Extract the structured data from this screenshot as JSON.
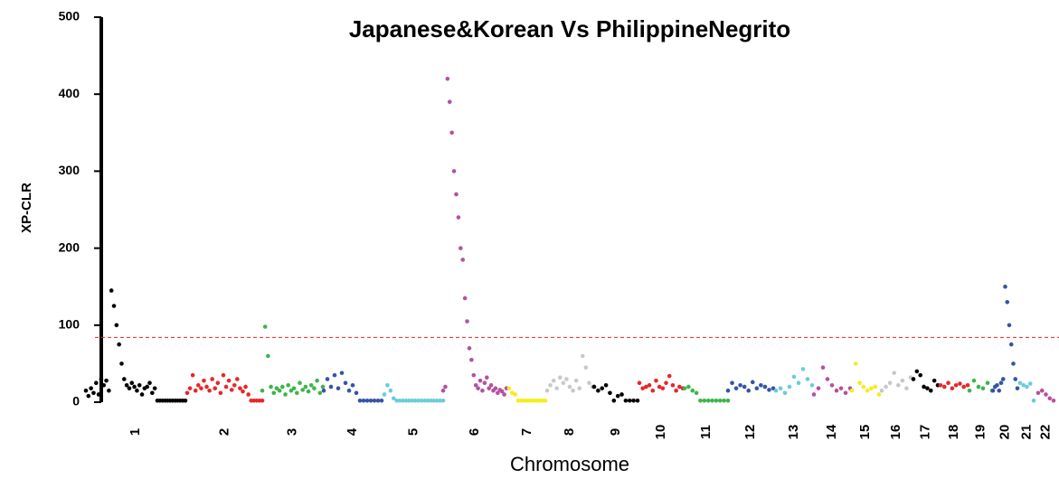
{
  "chart_data": {
    "type": "manhattan",
    "title": "Japanese&Korean Vs PhilippineNegrito",
    "xlabel": "Chromosome",
    "ylabel": "XP-CLR",
    "ylim": [
      0,
      500
    ],
    "yticks": [
      0,
      100,
      200,
      300,
      400,
      500
    ],
    "threshold": 84,
    "threshold_color": "#e8262a",
    "chromosomes": [
      {
        "label": "1",
        "color": "#000000",
        "values": [
          15,
          8,
          18,
          12,
          25,
          10,
          30,
          22,
          28,
          15,
          145,
          125,
          100,
          75,
          50,
          30,
          22,
          18,
          25,
          20,
          15,
          22,
          10,
          18,
          20,
          25,
          12,
          18,
          2,
          2,
          2,
          2,
          2,
          2,
          2,
          2,
          2,
          2,
          2,
          2
        ]
      },
      {
        "label": "2",
        "color": "#e8262a",
        "values": [
          12,
          18,
          35,
          15,
          22,
          18,
          28,
          20,
          15,
          30,
          18,
          25,
          12,
          35,
          20,
          28,
          16,
          22,
          30,
          18,
          14,
          20,
          10,
          2,
          2,
          2,
          2,
          2
        ]
      },
      {
        "label": "3",
        "color": "#3cb54a",
        "values": [
          15,
          98,
          60,
          20,
          12,
          18,
          15,
          20,
          10,
          22,
          15,
          18,
          12,
          25,
          16,
          20,
          14,
          22,
          18,
          28,
          12,
          20
        ]
      },
      {
        "label": "4",
        "color": "#3455a4",
        "values": [
          15,
          30,
          20,
          35,
          18,
          38,
          25,
          15,
          22,
          12,
          2,
          2,
          2,
          2,
          2,
          2,
          2
        ]
      },
      {
        "label": "5",
        "color": "#6ccbdc",
        "values": [
          10,
          22,
          15,
          5,
          2,
          2,
          2,
          2,
          2,
          2,
          2,
          2,
          2,
          2,
          2,
          2,
          2,
          2,
          2,
          2
        ]
      },
      {
        "label": "6",
        "color": "#b5519f",
        "values": [
          15,
          20,
          420,
          390,
          350,
          300,
          270,
          240,
          200,
          185,
          135,
          105,
          70,
          55,
          35,
          22,
          18,
          28,
          15,
          25,
          32,
          18,
          22,
          15,
          18,
          12,
          16,
          14,
          10,
          18
        ]
      },
      {
        "label": "7",
        "color": "#f7ec1a",
        "values": [
          18,
          12,
          10,
          2,
          2,
          2,
          2,
          2,
          2,
          2,
          2,
          2,
          2
        ]
      },
      {
        "label": "8",
        "color": "#c8c8c8",
        "values": [
          15,
          22,
          28,
          18,
          32,
          25,
          30,
          20,
          15,
          28,
          18,
          60,
          45,
          25,
          20
        ]
      },
      {
        "label": "9",
        "color": "#000000",
        "values": [
          20,
          15,
          18,
          22,
          12,
          2,
          8,
          10,
          2,
          2,
          2,
          2
        ]
      },
      {
        "label": "10",
        "color": "#e8262a",
        "values": [
          25,
          18,
          20,
          22,
          15,
          28,
          20,
          18,
          25,
          34,
          22,
          15,
          20,
          18
        ]
      },
      {
        "label": "11",
        "color": "#3cb54a",
        "values": [
          18,
          20,
          15,
          12,
          2,
          2,
          2,
          2,
          2,
          2,
          2,
          2
        ]
      },
      {
        "label": "12",
        "color": "#3455a4",
        "values": [
          15,
          25,
          18,
          22,
          20,
          15,
          26,
          18,
          22,
          20,
          16,
          18
        ]
      },
      {
        "label": "13",
        "color": "#6ccbdc",
        "values": [
          15,
          18,
          12,
          20,
          33,
          25,
          43,
          30,
          22
        ]
      },
      {
        "label": "14",
        "color": "#b5519f",
        "values": [
          10,
          18,
          45,
          30,
          22,
          15,
          18,
          12,
          18
        ]
      },
      {
        "label": "15",
        "color": "#f7ec1a",
        "values": [
          15,
          50,
          25,
          20,
          15,
          18,
          20,
          10
        ]
      },
      {
        "label": "16",
        "color": "#c8c8c8",
        "values": [
          15,
          20,
          25,
          38,
          22,
          28,
          18,
          32
        ]
      },
      {
        "label": "17",
        "color": "#000000",
        "values": [
          30,
          40,
          35,
          20,
          18,
          15,
          28,
          22
        ]
      },
      {
        "label": "18",
        "color": "#e8262a",
        "values": [
          22,
          20,
          25,
          18,
          22,
          24,
          20,
          22
        ]
      },
      {
        "label": "19",
        "color": "#3cb54a",
        "values": [
          15,
          28,
          20,
          18,
          25,
          15
        ]
      },
      {
        "label": "20",
        "color": "#3455a4",
        "values": [
          15,
          20,
          22,
          15,
          25,
          30,
          150,
          130,
          100,
          75,
          50,
          30,
          18
        ]
      },
      {
        "label": "21",
        "color": "#6ccbdc",
        "values": [
          25,
          22,
          20,
          24,
          2
        ]
      },
      {
        "label": "22",
        "color": "#b5519f",
        "values": [
          12,
          15,
          10,
          5,
          2
        ]
      }
    ]
  }
}
